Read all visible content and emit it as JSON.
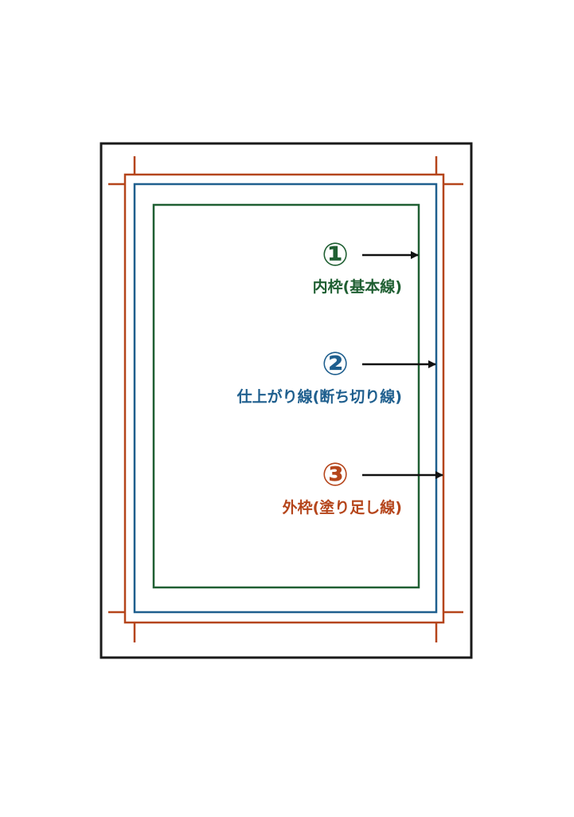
{
  "colors": {
    "page_border": "#1a1a1a",
    "inner_frame": "#1f5f32",
    "trim_line": "#1f5f8e",
    "bleed_line": "#b5451b",
    "arrow": "#111111",
    "background": "#ffffff"
  },
  "items": [
    {
      "number": "①",
      "label": "内枠(基本線)",
      "color": "#1f5f32"
    },
    {
      "number": "②",
      "label": "仕上がり線(断ち切り線)",
      "color": "#1f5f8e"
    },
    {
      "number": "③",
      "label": "外枠(塗り足し線)",
      "color": "#b5451b"
    }
  ]
}
